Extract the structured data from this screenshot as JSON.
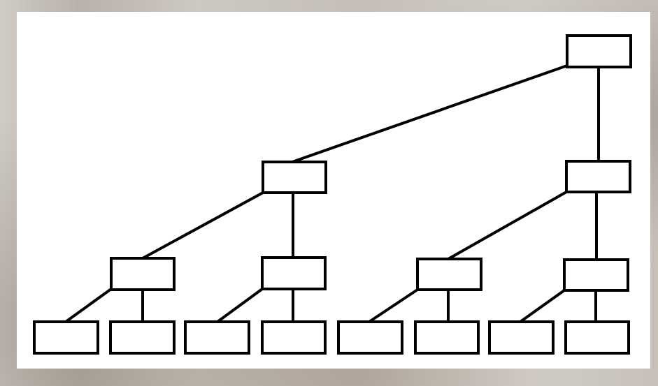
{
  "diagram": {
    "type": "tree",
    "stroke_color": "#000000",
    "node_fill": "#ffffff",
    "background_color": "#ffffff",
    "nodes": [
      {
        "id": "root"
      },
      {
        "id": "l1-left"
      },
      {
        "id": "l1-right"
      },
      {
        "id": "l2-a"
      },
      {
        "id": "l2-b"
      },
      {
        "id": "l2-c"
      },
      {
        "id": "l2-d"
      },
      {
        "id": "leaf-1"
      },
      {
        "id": "leaf-2"
      },
      {
        "id": "leaf-3"
      },
      {
        "id": "leaf-4"
      },
      {
        "id": "leaf-5"
      },
      {
        "id": "leaf-6"
      },
      {
        "id": "leaf-7"
      },
      {
        "id": "leaf-8"
      }
    ],
    "edges": [
      {
        "from": "root",
        "to": "l1-left"
      },
      {
        "from": "root",
        "to": "l1-right"
      },
      {
        "from": "l1-left",
        "to": "l2-a"
      },
      {
        "from": "l1-left",
        "to": "l2-b"
      },
      {
        "from": "l1-right",
        "to": "l2-c"
      },
      {
        "from": "l1-right",
        "to": "l2-d"
      },
      {
        "from": "l2-a",
        "to": "leaf-1"
      },
      {
        "from": "l2-a",
        "to": "leaf-2"
      },
      {
        "from": "l2-b",
        "to": "leaf-3"
      },
      {
        "from": "l2-b",
        "to": "leaf-4"
      },
      {
        "from": "l2-c",
        "to": "leaf-5"
      },
      {
        "from": "l2-c",
        "to": "leaf-6"
      },
      {
        "from": "l2-d",
        "to": "leaf-7"
      },
      {
        "from": "l2-d",
        "to": "leaf-8"
      }
    ]
  }
}
